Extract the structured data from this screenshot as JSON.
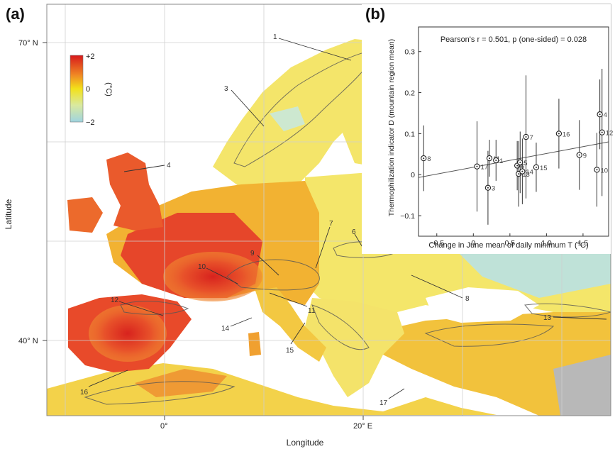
{
  "map_panel": {
    "letter": "(a)",
    "xlabel": "Longitude",
    "ylabel": "Latitude",
    "lat_ticks": [
      "70° N",
      "40° N"
    ],
    "lon_ticks": [
      "0°",
      "20° E"
    ],
    "colorbar": {
      "ticks": [
        "+2",
        "0",
        "−2"
      ],
      "unit": "(°C)",
      "colors": [
        "#d7191c",
        "#f2e11a",
        "#9fd4e0"
      ]
    },
    "region_labels": [
      "1",
      "3",
      "4",
      "6",
      "7",
      "8",
      "9",
      "10",
      "11",
      "12",
      "13",
      "14",
      "15",
      "16",
      "17"
    ],
    "colors": {
      "land_warm": "#e8412a",
      "land_mid": "#f2b632",
      "land_cool": "#f4e86a",
      "sea": "#ffffff",
      "contour": "#555555",
      "gridline": "#cfcfcf"
    }
  },
  "inset_panel": {
    "letter": "(b)"
  },
  "chart_data": {
    "type": "scatter",
    "title": "Pearson's r = 0.501, p (one-sided) = 0.028",
    "xlabel": "Change in June mean of daily minimum T (°C)",
    "ylabel": "Thermophilization indicator D (mountain region mean)",
    "xlim": [
      -0.75,
      1.85
    ],
    "ylim": [
      -0.15,
      0.36
    ],
    "xticks": [
      -0.5,
      0,
      0.5,
      1,
      1.5
    ],
    "xtick_labels": [
      "−0.5",
      "0",
      "0.5",
      "1.0",
      "1.5"
    ],
    "yticks": [
      -0.1,
      0,
      0.1,
      0.2,
      0.3
    ],
    "ytick_labels": [
      "−0.1",
      "0",
      "0.1",
      "0.2",
      "0.3"
    ],
    "grid": false,
    "points": [
      {
        "label": "8",
        "x": -0.68,
        "y": 0.04,
        "err": 0.08
      },
      {
        "label": "17",
        "x": 0.05,
        "y": 0.02,
        "err": 0.11
      },
      {
        "label": "3",
        "x": 0.2,
        "y": -0.032,
        "err": 0.09
      },
      {
        "label": "11",
        "x": 0.22,
        "y": 0.04,
        "err": 0.045
      },
      {
        "label": "1",
        "x": 0.31,
        "y": 0.035,
        "err": 0.05
      },
      {
        "label": "6",
        "x": 0.6,
        "y": 0.022,
        "err": 0.06
      },
      {
        "label": "13",
        "x": 0.62,
        "y": 0.002,
        "err": 0.08
      },
      {
        "label": "5",
        "x": 0.64,
        "y": 0.03,
        "err": 0.075
      },
      {
        "label": "14",
        "x": 0.67,
        "y": 0.008,
        "err": 0.08
      },
      {
        "label": "7",
        "x": 0.72,
        "y": 0.092,
        "err": 0.15
      },
      {
        "label": "15",
        "x": 0.86,
        "y": 0.018,
        "err": 0.06
      },
      {
        "label": "16",
        "x": 1.17,
        "y": 0.1,
        "err": 0.085
      },
      {
        "label": "9",
        "x": 1.45,
        "y": 0.048,
        "err": 0.085
      },
      {
        "label": "10",
        "x": 1.69,
        "y": 0.012,
        "err": 0.09
      },
      {
        "label": "12",
        "x": 1.76,
        "y": 0.103,
        "err": 0.155
      },
      {
        "label": "4",
        "x": 1.73,
        "y": 0.147,
        "err": 0.085
      }
    ],
    "fit_line": {
      "x": [
        -0.75,
        1.85
      ],
      "y": [
        -0.007,
        0.08
      ]
    }
  }
}
